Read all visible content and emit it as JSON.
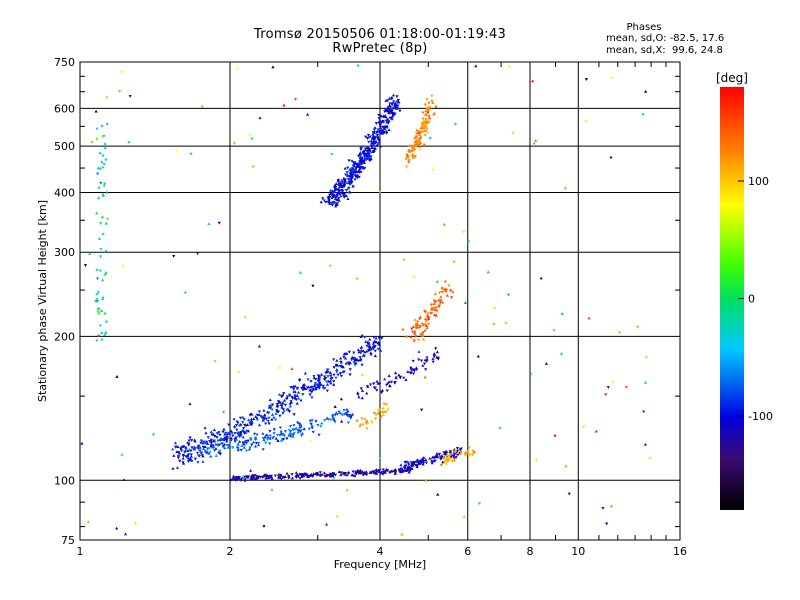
{
  "title": {
    "line1": "Tromsø 20150506 01:18:00-01:19:43",
    "line2": "RwPretec (8p)"
  },
  "stats": {
    "header": "Phases",
    "line1": "mean, sd,O: -82.5, 17.6",
    "line2": "mean, sd,X:  99.6, 24.8"
  },
  "chart_data": {
    "type": "scatter",
    "xlabel": "Frequency [MHz]",
    "ylabel": "Stationary phase Virtual Height [km]",
    "xscale": "log",
    "yscale": "log",
    "xlim": [
      1,
      16
    ],
    "ylim": [
      75,
      750
    ],
    "xticks": [
      {
        "value": 1,
        "label": "1"
      },
      {
        "value": 2,
        "label": "2"
      },
      {
        "value": 4,
        "label": "4"
      },
      {
        "value": 6,
        "label": "6"
      },
      {
        "value": 8,
        "label": "8"
      },
      {
        "value": 10,
        "label": "10"
      },
      {
        "value": 16,
        "label": "16"
      }
    ],
    "yticks": [
      {
        "value": 75,
        "label": "75"
      },
      {
        "value": 100,
        "label": "100"
      },
      {
        "value": 200,
        "label": "200"
      },
      {
        "value": 300,
        "label": "300"
      },
      {
        "value": 400,
        "label": "400"
      },
      {
        "value": 500,
        "label": "500"
      },
      {
        "value": 600,
        "label": "600"
      },
      {
        "value": 750,
        "label": "750"
      }
    ],
    "grid": true,
    "colorbar": {
      "label": "[deg]",
      "ticks": [
        {
          "value": 100,
          "label": "100"
        },
        {
          "value": 0,
          "label": "0"
        },
        {
          "value": -100,
          "label": "-100"
        }
      ],
      "range": [
        -180,
        180
      ]
    },
    "traces": [
      {
        "x0": 1.55,
        "x1": 4.0,
        "y0": 113,
        "y1": 198,
        "phase": -95,
        "n": 460,
        "spread": 0.07
      },
      {
        "x0": 1.75,
        "x1": 3.5,
        "y0": 115,
        "y1": 138,
        "phase": -75,
        "n": 180,
        "spread": 0.05
      },
      {
        "x0": 3.6,
        "x1": 5.3,
        "y0": 152,
        "y1": 185,
        "phase": -110,
        "n": 70,
        "spread": 0.04
      },
      {
        "x0": 4.6,
        "x1": 5.5,
        "y0": 200,
        "y1": 255,
        "phase": 140,
        "n": 90,
        "spread": 0.06
      },
      {
        "x0": 3.6,
        "x1": 4.2,
        "y0": 130,
        "y1": 142,
        "phase": 110,
        "n": 30,
        "spread": 0.04
      },
      {
        "x0": 2.0,
        "x1": 4.6,
        "y0": 101,
        "y1": 105,
        "phase": -118,
        "n": 240,
        "spread": 0.015
      },
      {
        "x0": 4.4,
        "x1": 5.8,
        "y0": 107,
        "y1": 116,
        "phase": -105,
        "n": 110,
        "spread": 0.03
      },
      {
        "x0": 5.3,
        "x1": 6.2,
        "y0": 110,
        "y1": 116,
        "phase": 115,
        "n": 35,
        "spread": 0.03
      },
      {
        "x0": 3.15,
        "x1": 4.3,
        "y0": 385,
        "y1": 620,
        "phase": -100,
        "n": 420,
        "spread": 0.06
      },
      {
        "x0": 4.55,
        "x1": 5.1,
        "y0": 470,
        "y1": 620,
        "phase": 125,
        "n": 110,
        "spread": 0.05
      }
    ]
  }
}
